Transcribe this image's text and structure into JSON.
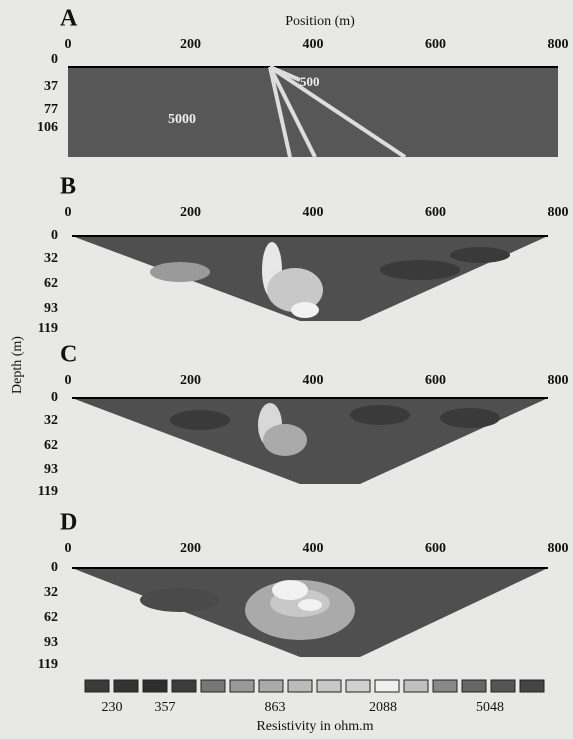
{
  "figure": {
    "axis_label": "Position (m)",
    "depth_label": "Depth (m)",
    "panels": [
      {
        "label": "A",
        "x_ticks": [
          "0",
          "200",
          "400",
          "600",
          "800"
        ],
        "depth_ticks": [
          "0",
          "37",
          "77",
          "106"
        ],
        "annotations": [
          "500",
          "5000"
        ]
      },
      {
        "label": "B",
        "x_ticks": [
          "0",
          "200",
          "400",
          "600",
          "800"
        ],
        "depth_ticks": [
          "0",
          "32",
          "62",
          "93",
          "119"
        ]
      },
      {
        "label": "C",
        "x_ticks": [
          "0",
          "200",
          "400",
          "600",
          "800"
        ],
        "depth_ticks": [
          "0",
          "32",
          "62",
          "93",
          "119"
        ]
      },
      {
        "label": "D",
        "x_ticks": [
          "0",
          "200",
          "400",
          "600",
          "800"
        ],
        "depth_ticks": [
          "0",
          "32",
          "62",
          "93",
          "119"
        ]
      }
    ],
    "colorbar": {
      "labels": [
        "230",
        "357",
        "863",
        "2088",
        "5048"
      ],
      "title": "Resistivity in ohm.m"
    }
  }
}
